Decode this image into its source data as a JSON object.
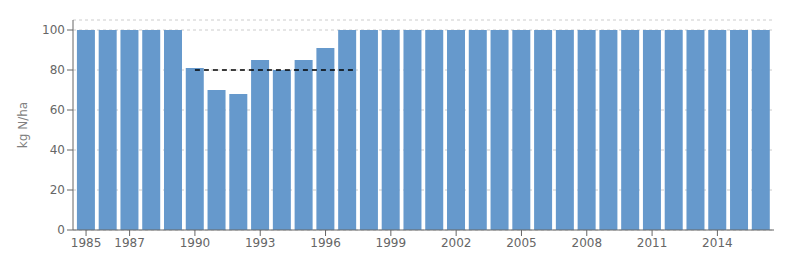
{
  "chart_data": {
    "type": "bar",
    "x": [
      1985,
      1986,
      1987,
      1988,
      1989,
      1990,
      1991,
      1992,
      1993,
      1994,
      1995,
      1996,
      1997,
      1998,
      1999,
      2000,
      2001,
      2002,
      2003,
      2004,
      2005,
      2006,
      2007,
      2008,
      2009,
      2010,
      2011,
      2012,
      2013,
      2014,
      2015,
      2016
    ],
    "values": [
      100,
      100,
      100,
      100,
      100,
      81,
      70,
      68,
      85,
      80,
      85,
      91,
      100,
      100,
      100,
      100,
      100,
      100,
      100,
      100,
      100,
      100,
      100,
      100,
      100,
      100,
      100,
      100,
      100,
      100,
      100,
      100
    ],
    "color": "#6699cc",
    "ylabel": "kg N/ha",
    "xlim": [
      1984.4,
      2016.6
    ],
    "xticks": [
      1985,
      1987,
      1990,
      1993,
      1996,
      1999,
      2002,
      2005,
      2008,
      2011,
      2014
    ],
    "ylim": [
      0,
      105
    ],
    "yticks": [
      0,
      20,
      40,
      60,
      80,
      100
    ],
    "grid": true,
    "hline": {
      "y": 80,
      "xmin": 1990.0,
      "xmax": 1997.4,
      "color": "#000000",
      "line_style": "dashed"
    }
  }
}
